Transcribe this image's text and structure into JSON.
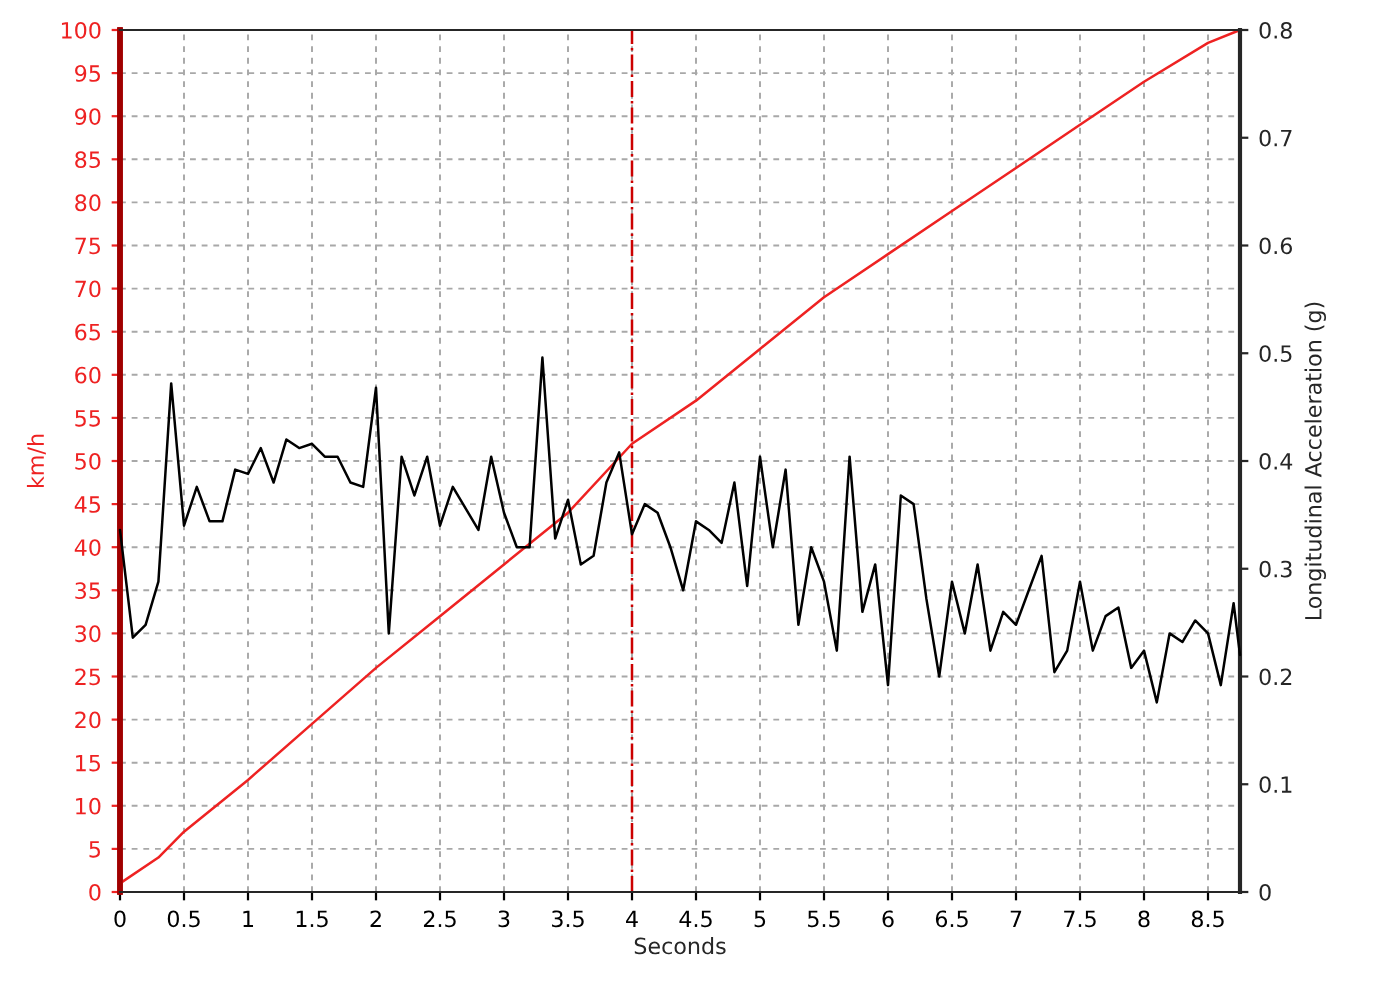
{
  "chart_data": {
    "type": "line",
    "xlabel": "Seconds",
    "ylabel": "km/h",
    "y2label": "Longitudinal Acceleration (g)",
    "xlim": [
      0,
      8.75
    ],
    "xticks": [
      0,
      0.5,
      1,
      1.5,
      2,
      2.5,
      3,
      3.5,
      4,
      4.5,
      5,
      5.5,
      6,
      6.5,
      7,
      7.5,
      8,
      8.5
    ],
    "ylim": [
      0,
      100
    ],
    "yticks": [
      0,
      5,
      10,
      15,
      20,
      25,
      30,
      35,
      40,
      45,
      50,
      55,
      60,
      65,
      70,
      75,
      80,
      85,
      90,
      95,
      100
    ],
    "y2lim": [
      0,
      0.8
    ],
    "y2ticks": [
      0,
      0.1,
      0.2,
      0.3,
      0.4,
      0.5,
      0.6,
      0.7,
      0.8
    ],
    "grid": true,
    "legend": false,
    "marker": "none",
    "line_style": "solid",
    "ref_lines": [
      {
        "axis": "x",
        "value": 4,
        "label": null,
        "color": "#cc0000",
        "line_style": "dashdot"
      }
    ],
    "series": [
      {
        "color": "#ee2222",
        "axis": "y",
        "x": [
          0,
          0.3,
          0.5,
          1,
          1.5,
          2,
          2.5,
          3,
          3.5,
          4,
          4.5,
          5,
          5.5,
          6,
          6.5,
          7,
          7.5,
          8,
          8.5,
          8.75
        ],
        "values": [
          1,
          4,
          7,
          13,
          19.5,
          26,
          32,
          38,
          44,
          52,
          57,
          63,
          69,
          74,
          79,
          84,
          89,
          94,
          98.5,
          100
        ]
      },
      {
        "color": "#000000",
        "axis": "y2",
        "x": [
          0,
          0.1,
          0.2,
          0.3,
          0.4,
          0.5,
          0.6,
          0.7,
          0.8,
          0.9,
          1.0,
          1.1,
          1.2,
          1.3,
          1.4,
          1.5,
          1.6,
          1.7,
          1.8,
          1.9,
          2.0,
          2.1,
          2.2,
          2.3,
          2.4,
          2.5,
          2.6,
          2.7,
          2.8,
          2.9,
          3.0,
          3.1,
          3.2,
          3.3,
          3.4,
          3.5,
          3.6,
          3.7,
          3.8,
          3.9,
          4.0,
          4.1,
          4.2,
          4.3,
          4.4,
          4.5,
          4.6,
          4.7,
          4.8,
          4.9,
          5.0,
          5.1,
          5.2,
          5.3,
          5.4,
          5.5,
          5.6,
          5.7,
          5.8,
          5.9,
          6.0,
          6.1,
          6.2,
          6.3,
          6.4,
          6.5,
          6.6,
          6.7,
          6.8,
          6.9,
          7.0,
          7.1,
          7.2,
          7.3,
          7.4,
          7.5,
          7.6,
          7.7,
          7.8,
          7.9,
          8.0,
          8.1,
          8.2,
          8.3,
          8.4,
          8.5,
          8.6,
          8.7,
          8.75
        ],
        "values": [
          0.336,
          0.236,
          0.248,
          0.288,
          0.472,
          0.34,
          0.376,
          0.344,
          0.344,
          0.392,
          0.388,
          0.412,
          0.38,
          0.42,
          0.412,
          0.416,
          0.404,
          0.404,
          0.38,
          0.376,
          0.468,
          0.24,
          0.404,
          0.368,
          0.404,
          0.34,
          0.376,
          0.356,
          0.336,
          0.404,
          0.352,
          0.32,
          0.32,
          0.496,
          0.328,
          0.364,
          0.304,
          0.312,
          0.38,
          0.408,
          0.332,
          0.36,
          0.352,
          0.32,
          0.28,
          0.344,
          0.336,
          0.324,
          0.38,
          0.284,
          0.404,
          0.32,
          0.392,
          0.248,
          0.32,
          0.288,
          0.224,
          0.404,
          0.26,
          0.304,
          0.192,
          0.368,
          0.36,
          0.272,
          0.2,
          0.288,
          0.24,
          0.304,
          0.224,
          0.26,
          0.248,
          0.28,
          0.312,
          0.204,
          0.224,
          0.288,
          0.224,
          0.256,
          0.264,
          0.208,
          0.224,
          0.176,
          0.24,
          0.232,
          0.252,
          0.24,
          0.192,
          0.268,
          0.22
        ]
      }
    ]
  }
}
